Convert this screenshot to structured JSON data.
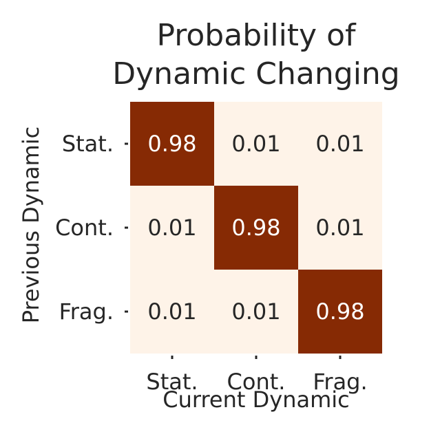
{
  "chart_data": {
    "type": "heatmap",
    "title_lines": [
      "Probability of",
      "Dynamic Changing"
    ],
    "xlabel": "Current Dynamic",
    "ylabel": "Previous Dynamic",
    "x_categories": [
      "Stat.",
      "Cont.",
      "Frag."
    ],
    "y_categories": [
      "Stat.",
      "Cont.",
      "Frag."
    ],
    "values": [
      [
        0.98,
        0.01,
        0.01
      ],
      [
        0.01,
        0.98,
        0.01
      ],
      [
        0.01,
        0.01,
        0.98
      ]
    ],
    "value_labels": [
      [
        "0.98",
        "0.01",
        "0.01"
      ],
      [
        "0.01",
        "0.98",
        "0.01"
      ],
      [
        "0.01",
        "0.01",
        "0.98"
      ]
    ],
    "colorscale": {
      "low": "#fef3e8",
      "high": "#862a04"
    },
    "label_colors": {
      "on_dark": "#ffffff",
      "on_light": "#262626"
    },
    "colorbar": false,
    "grid": false
  }
}
